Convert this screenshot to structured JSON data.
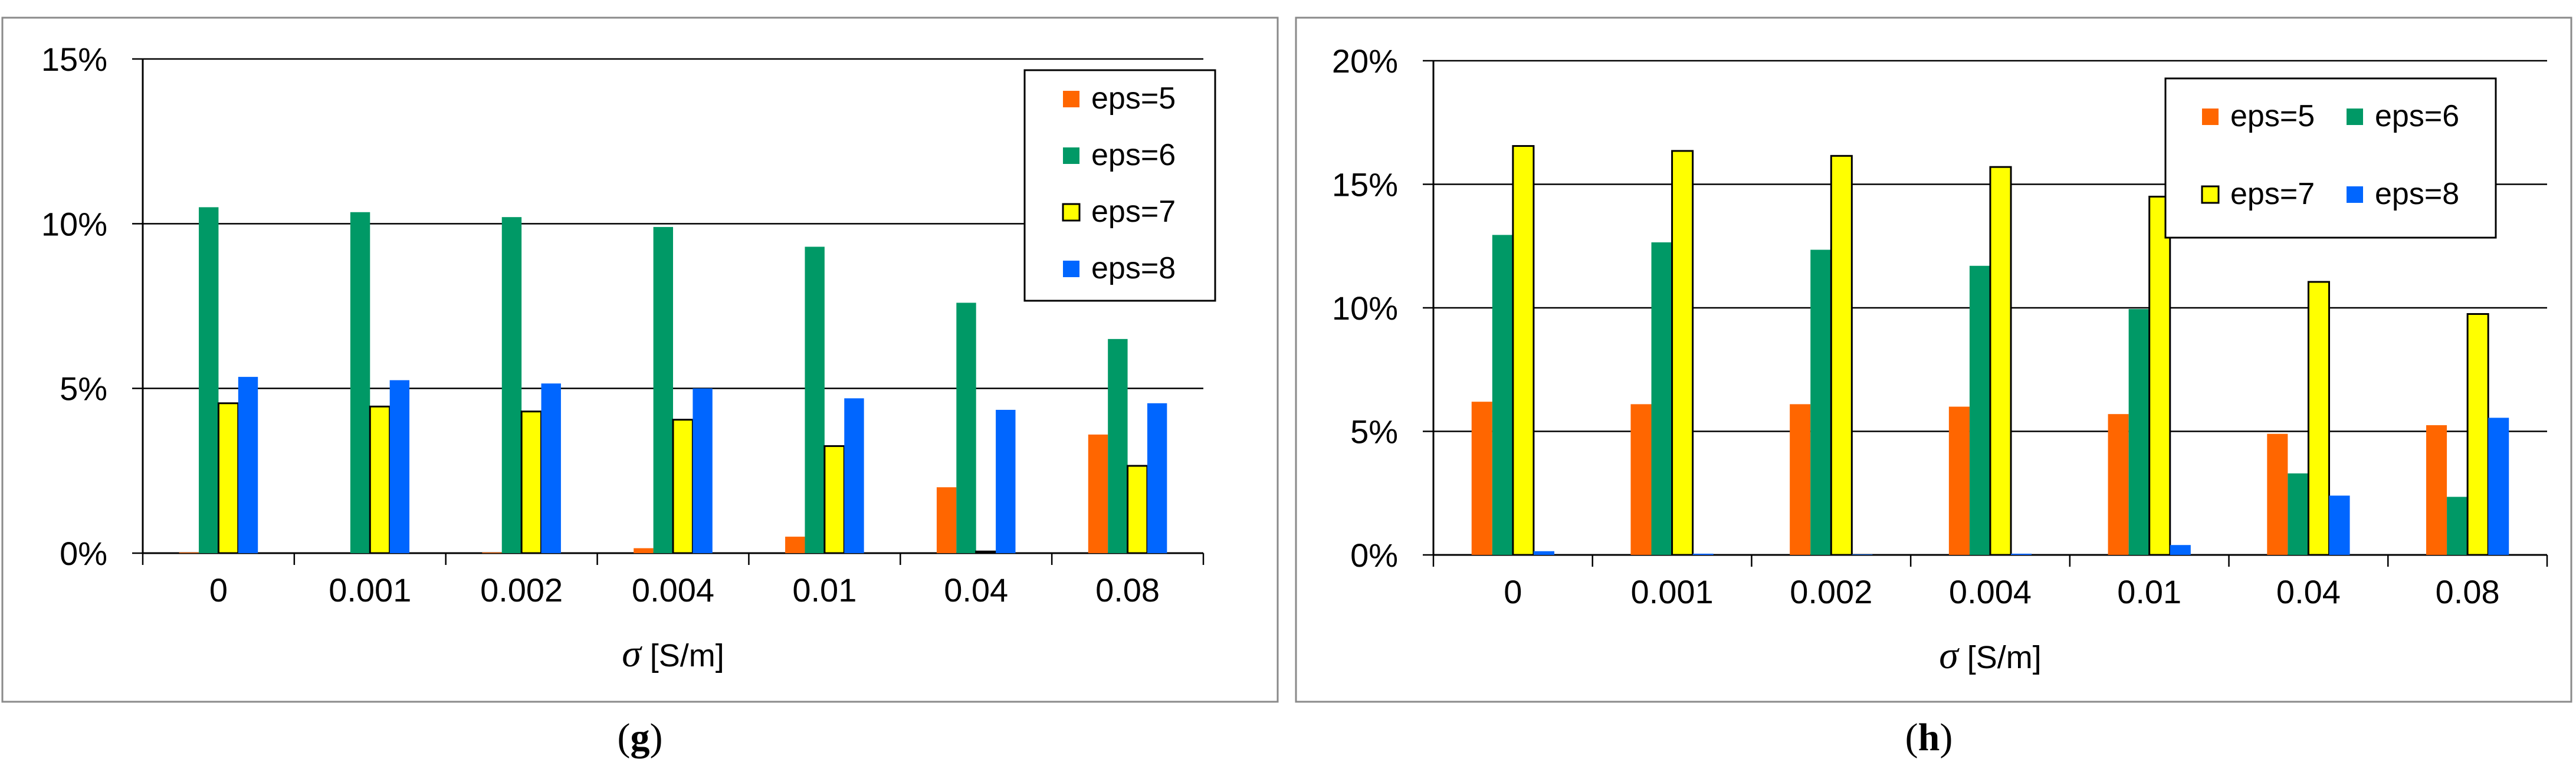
{
  "chart_data": [
    {
      "type": "bar",
      "panel_label": "(g)",
      "title": "",
      "xlabel_symbol": "σ",
      "xlabel_unit": " [S/m]",
      "ylabel": "",
      "ylim": [
        0,
        15
      ],
      "yticks": [
        0,
        5,
        10,
        15
      ],
      "yticklabels": [
        "0%",
        "5%",
        "10%",
        "15%"
      ],
      "grid": true,
      "legend_position": "top-right",
      "legend_layout": "vertical",
      "categories": [
        "0",
        "0.001",
        "0.002",
        "0.004",
        "0.01",
        "0.04",
        "0.08"
      ],
      "series": [
        {
          "name": "eps=5",
          "color": "#ff6600",
          "values": [
            0.02,
            0.0,
            0.02,
            0.15,
            0.5,
            2.0,
            3.6
          ]
        },
        {
          "name": "eps=6",
          "color": "#009966",
          "values": [
            10.5,
            10.35,
            10.2,
            9.9,
            9.3,
            7.6,
            6.5
          ]
        },
        {
          "name": "eps=7",
          "color": "#ffff00",
          "values": [
            4.55,
            4.45,
            4.3,
            4.05,
            3.25,
            0.05,
            2.65
          ]
        },
        {
          "name": "eps=8",
          "color": "#0066ff",
          "values": [
            5.35,
            5.25,
            5.15,
            5.0,
            4.7,
            4.35,
            4.55
          ]
        }
      ]
    },
    {
      "type": "bar",
      "panel_label": "(h)",
      "title": "",
      "xlabel_symbol": "σ",
      "xlabel_unit": " [S/m]",
      "ylabel": "",
      "ylim": [
        0,
        20
      ],
      "yticks": [
        0,
        5,
        10,
        15,
        20
      ],
      "yticklabels": [
        "0%",
        "5%",
        "10%",
        "15%",
        "20%"
      ],
      "grid": true,
      "legend_position": "top-right",
      "legend_layout": "two-column",
      "categories": [
        "0",
        "0.001",
        "0.002",
        "0.004",
        "0.01",
        "0.04",
        "0.08"
      ],
      "series": [
        {
          "name": "eps=5",
          "color": "#ff6600",
          "values": [
            6.2,
            6.1,
            6.1,
            6.0,
            5.7,
            4.9,
            5.25
          ]
        },
        {
          "name": "eps=6",
          "color": "#009966",
          "values": [
            12.95,
            12.65,
            12.35,
            11.7,
            9.95,
            3.3,
            2.35
          ]
        },
        {
          "name": "eps=7",
          "color": "#ffff00",
          "values": [
            16.55,
            16.35,
            16.15,
            15.7,
            14.5,
            11.05,
            9.75
          ]
        },
        {
          "name": "eps=8",
          "color": "#0066ff",
          "values": [
            0.15,
            0.05,
            0.02,
            0.05,
            0.4,
            2.4,
            5.55
          ]
        }
      ]
    }
  ]
}
